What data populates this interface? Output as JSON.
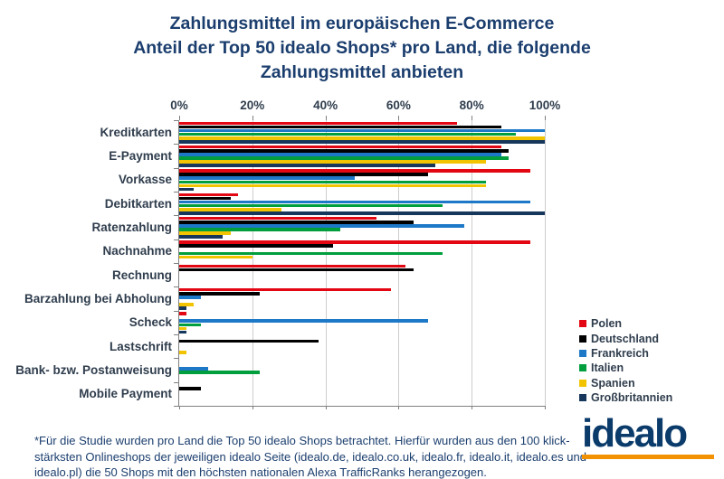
{
  "title": {
    "lines": [
      "Zahlungsmittel im europäischen E-Commerce",
      "Anteil der Top 50 idealo Shops* pro Land, die folgende",
      "Zahlungsmittel anbieten"
    ]
  },
  "chart_data": {
    "type": "bar",
    "orientation": "horizontal",
    "unit": "%",
    "title": "Anteil der Top 50 idealo Shops pro Land, die folgende Zahlungsmittel anbieten",
    "x_axis": {
      "min": 0,
      "max": 100,
      "tick_step": 20,
      "ticks": [
        "0%",
        "20%",
        "40%",
        "60%",
        "80%",
        "100%"
      ],
      "grid": true
    },
    "legend_position": "right",
    "categories": [
      "Kreditkarten",
      "E-Payment",
      "Vorkasse",
      "Debitkarten",
      "Ratenzahlung",
      "Nachnahme",
      "Rechnung",
      "Barzahlung bei Abholung",
      "Scheck",
      "Lastschrift",
      "Bank- bzw. Postanweisung",
      "Mobile Payment"
    ],
    "series": [
      {
        "name": "Polen",
        "color": "#e30613",
        "values": [
          76,
          88,
          96,
          16,
          54,
          96,
          62,
          58,
          2,
          0,
          0,
          0
        ]
      },
      {
        "name": "Deutschland",
        "color": "#000000",
        "values": [
          88,
          90,
          68,
          14,
          64,
          42,
          64,
          22,
          0,
          38,
          0,
          6
        ]
      },
      {
        "name": "Frankreich",
        "color": "#1d78c8",
        "values": [
          100,
          88,
          48,
          96,
          78,
          0,
          0,
          6,
          68,
          0,
          8,
          0
        ]
      },
      {
        "name": "Italien",
        "color": "#009e3c",
        "values": [
          92,
          90,
          84,
          72,
          44,
          72,
          0,
          0,
          6,
          0,
          22,
          0
        ]
      },
      {
        "name": "Spanien",
        "color": "#f2c400",
        "values": [
          100,
          84,
          84,
          28,
          14,
          20,
          0,
          4,
          2,
          2,
          0,
          0
        ]
      },
      {
        "name": "Großbritannien",
        "color": "#16365c",
        "values": [
          100,
          70,
          4,
          100,
          12,
          0,
          0,
          2,
          2,
          0,
          0,
          0
        ]
      }
    ]
  },
  "footnote": "*Für die Studie wurden pro Land die Top 50 idealo Shops betrachtet. Hierfür wurden aus den 100 klick-stärksten Onlineshops der jeweiligen idealo Seite (idealo.de, idealo.co.uk, idealo.fr, idealo.it, idealo.es und idealo.pl) die 50 Shops mit den höchsten nationalen Alexa TrafficRanks herangezogen.",
  "logo": {
    "text": "idealo",
    "text_color": "#0b3b6b",
    "underline_color": "#f39200"
  }
}
